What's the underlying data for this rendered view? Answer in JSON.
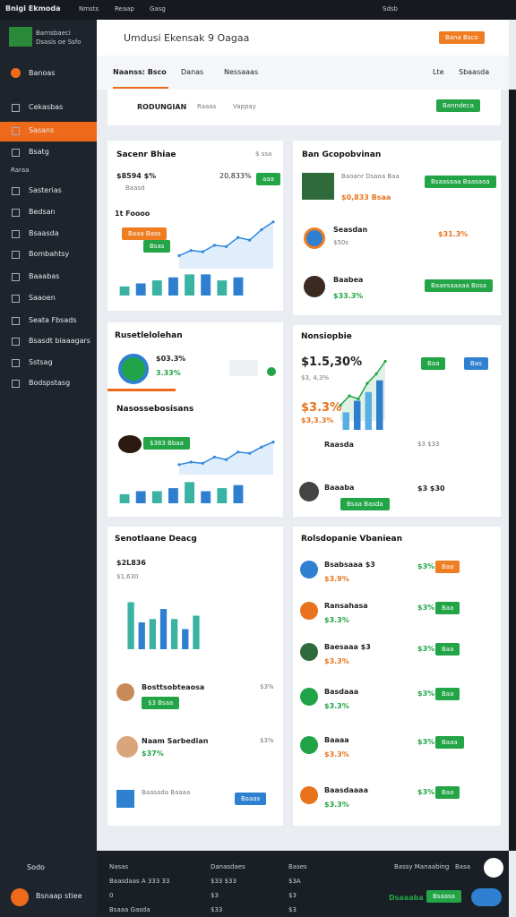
{
  "topbar": {
    "brand": "Bnigi Ekmoda",
    "menu": [
      "Nmsts",
      "Reaap",
      "Gasg"
    ],
    "right": "Sdsb"
  },
  "sidebar": {
    "logo_title": "Barnsbaeci",
    "logo_sub": "Dsasis oe Ssfo",
    "items": [
      "Banoas",
      "Cekasbas",
      "Sasans",
      "Bsatg"
    ],
    "section": "Raraa",
    "items2": [
      "Sasterias",
      "Bedsan",
      "Bsaasda",
      "Bombahtsy",
      "Baaabas",
      "Saaoen",
      "Seata Fbsads",
      "Bsasdt biaaagars",
      "Sstsag",
      "Bodspstasg"
    ],
    "footer": [
      "Sodo",
      "Bsnaap stiee"
    ]
  },
  "header": {
    "title": "Umdusi Ekensak 9 Oagaa",
    "button": "Bana Bsco"
  },
  "tabs": {
    "items": [
      "Naanss: Bsco",
      "Danas",
      "Nessaaas"
    ],
    "right": [
      "Lte",
      "Sbaasda"
    ]
  },
  "filter": {
    "items": [
      "RODUNGIAN",
      "Raaas",
      "Vappay"
    ],
    "button": "Banndeca"
  },
  "cards": [
    {
      "title": "Sacenr Bhiae",
      "corner": "$ ssa",
      "value": "$8594 $%",
      "sub": "Baasd",
      "pct": "20,833%",
      "badge": "aaa",
      "label": "1t Foooo",
      "pill": "Baaa Bass",
      "tag": "Bsas"
    },
    {
      "title": "Ban Gcopobvinan",
      "rows": [
        {
          "name": "Baoanr Dsaoa Baa",
          "sub": "$0,833 Bsaa",
          "button": "Bsaasaaa Baasaoa"
        },
        {
          "name": "Seasdan",
          "sub": "$50s",
          "price": "$31.3%"
        },
        {
          "name": "Baabea",
          "sub": "$33.3%",
          "button": "Baaesaaaaa Bosa"
        }
      ]
    },
    {
      "title": "Rusetlelolehan",
      "value": "$03.3%",
      "pct": "3.33%",
      "label": "Nasossebosisans",
      "pill": "$383 Bbaa"
    },
    {
      "title": "Nonsiopbie",
      "value": "$1.5,30%",
      "sub": "$3, 4,3%",
      "value2": "$3.3%",
      "sub2": "$3,3.3%",
      "badges": [
        "Baa",
        "Bas"
      ],
      "rows": [
        {
          "name": "Raasda",
          "price": "$3 $33"
        },
        {
          "name": "Baaaba",
          "price": "$3 $30",
          "pill": "Bsaa Basda"
        }
      ]
    },
    {
      "title": "Senotlaane Deacg",
      "value": "$2L836",
      "sub": "$1,630",
      "rows": [
        {
          "name": "Bosttsobteaosa",
          "sub": "$3 Bsaa",
          "price": "$3%"
        },
        {
          "name": "Naam Sarbedian",
          "sub": "$37%",
          "price": "$3%"
        },
        {
          "name": "Baasada Baaaa",
          "button": "Baaas"
        }
      ]
    },
    {
      "title": "Rolsdopanie Vbaniean",
      "rows": [
        {
          "name": "Bsabsaaa $3",
          "sub": "$3.9%",
          "price": "$3%",
          "badge": "Baa"
        },
        {
          "name": "Ransahasa",
          "sub": "$3.3%",
          "price": "$3%",
          "badge": "Baa"
        },
        {
          "name": "Baesaaa $3",
          "sub": "$3.3%",
          "price": "$3%",
          "badge": "Baa"
        },
        {
          "name": "Basdaaa",
          "sub": "$3.3%",
          "price": "$3%",
          "badge": "Baa"
        },
        {
          "name": "Baaaa",
          "sub": "$3.3%",
          "price": "$3%",
          "badge": "Baaa"
        },
        {
          "name": "Baasdaaaa",
          "sub": "$3.3%",
          "price": "$3%",
          "badge": "Baa"
        }
      ]
    }
  ],
  "charts": [
    {
      "line": [
        10,
        14,
        13,
        18,
        17,
        24,
        22,
        30,
        36
      ],
      "ylim": [
        0,
        40
      ],
      "bars": [
        3,
        4,
        5,
        6,
        7,
        7,
        5,
        6
      ],
      "bar_ylim": [
        0,
        8
      ],
      "line_color": "#2e86de",
      "colors": [
        "#3bb3a3",
        "#2f7fd1"
      ]
    },
    {
      "line": [
        8,
        10,
        9,
        14,
        12,
        18,
        17,
        22,
        26
      ],
      "ylim": [
        0,
        30
      ],
      "bars": [
        3,
        4,
        4,
        5,
        7,
        4,
        5,
        6
      ],
      "bar_ylim": [
        0,
        8
      ],
      "line_color": "#2e86de",
      "colors": [
        "#3bb3a3",
        "#2f7fd1"
      ]
    },
    {
      "line": [
        10,
        16,
        14,
        24,
        30,
        38
      ],
      "ylim": [
        0,
        40
      ],
      "bars": [
        12,
        20,
        26,
        34
      ],
      "bar_ylim": [
        0,
        40
      ],
      "line_color": "#21a447",
      "colors": [
        "#5aaee6",
        "#2f7fd1"
      ]
    },
    {
      "bars": [
        28,
        16,
        18,
        24,
        18,
        12,
        20
      ],
      "bar_ylim": [
        0,
        32
      ],
      "colors": [
        "#3bb3a3",
        "#2f7fd1"
      ]
    }
  ],
  "footer": {
    "cols": [
      "Nasas",
      "Danasdaes",
      "Bases"
    ],
    "rows": [
      [
        "Baasdaas A 333 33",
        "$33 $33",
        "$3A"
      ],
      [
        "0",
        "$3",
        "$3"
      ],
      [
        "Bsaaa Gasda",
        "$33",
        "$3"
      ]
    ],
    "right": [
      "Bassy Manaabing",
      "Basa"
    ],
    "buttons": [
      "Dsaaaba",
      "Bsaasa"
    ]
  }
}
